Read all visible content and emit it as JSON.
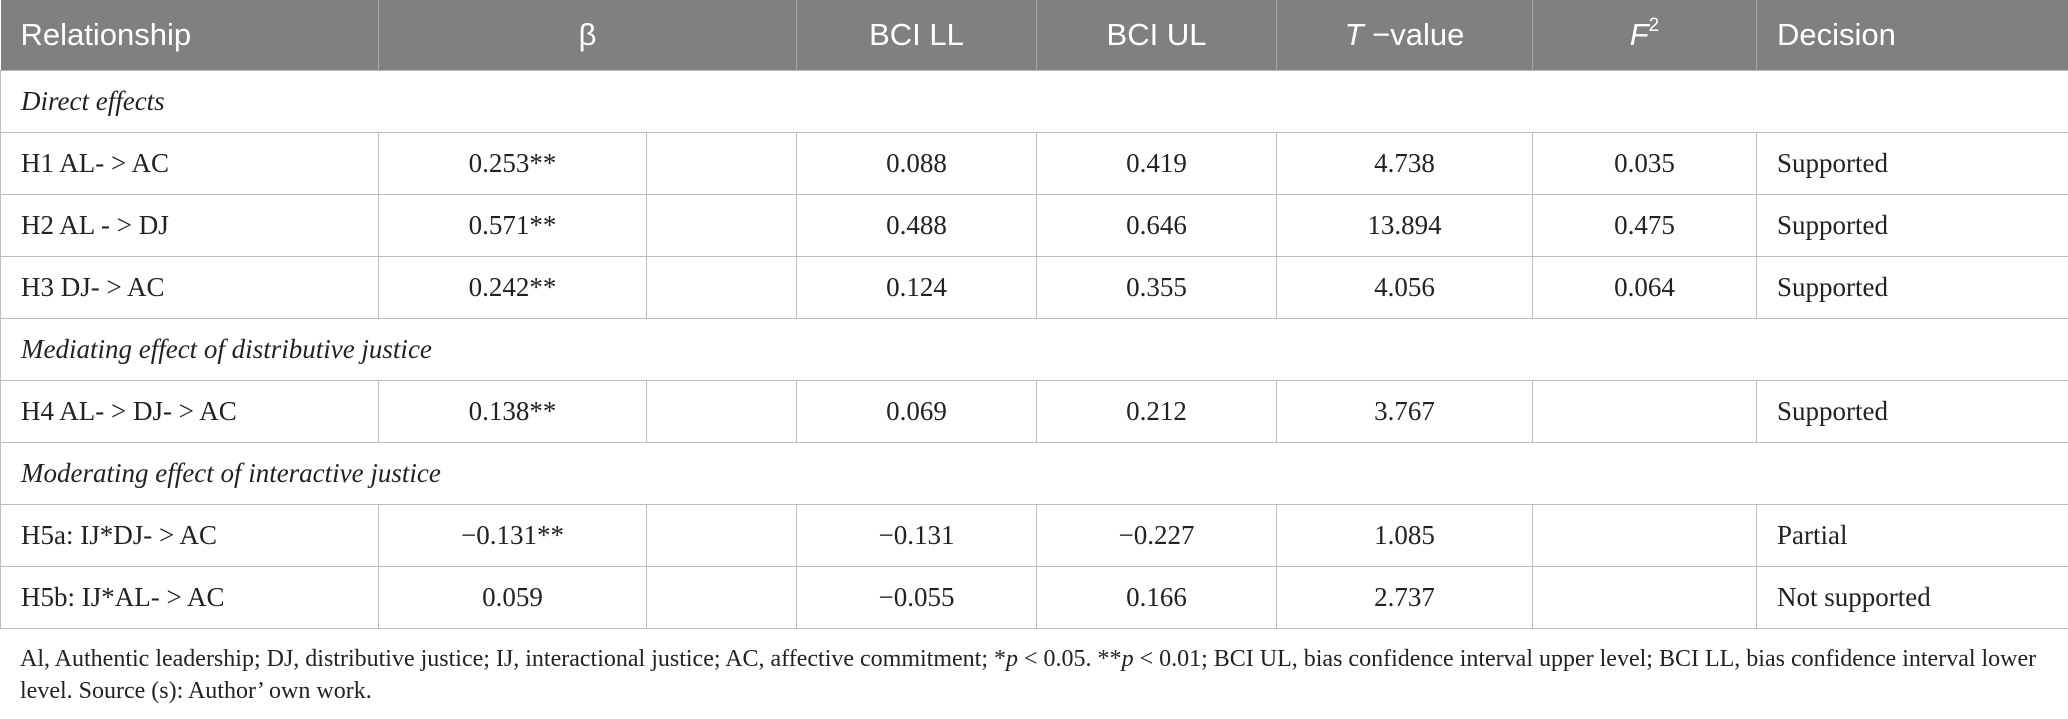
{
  "header": {
    "relationship": "Relationship",
    "beta": "β",
    "bci_ll": "BCI LL",
    "bci_ul": "BCI UL",
    "t_value_prefix": "T",
    "t_value_suffix": " −value",
    "f2_base": "F",
    "f2_sup": "2",
    "decision": "Decision"
  },
  "sections": {
    "direct": "Direct effects",
    "mediating": "Mediating effect of distributive justice",
    "moderating": "Moderating effect of interactive justice"
  },
  "rows": [
    {
      "relationship": "H1 AL- > AC",
      "beta": "0.253**",
      "extra": "",
      "bci_ll": "0.088",
      "bci_ul": "0.419",
      "t_value": "4.738",
      "f2": "0.035",
      "decision": "Supported"
    },
    {
      "relationship": "H2 AL - > DJ",
      "beta": "0.571**",
      "extra": "",
      "bci_ll": "0.488",
      "bci_ul": "0.646",
      "t_value": "13.894",
      "f2": "0.475",
      "decision": "Supported"
    },
    {
      "relationship": "H3 DJ- > AC",
      "beta": "0.242**",
      "extra": "",
      "bci_ll": "0.124",
      "bci_ul": "0.355",
      "t_value": "4.056",
      "f2": "0.064",
      "decision": "Supported"
    },
    {
      "relationship": "H4 AL- > DJ- > AC",
      "beta": "0.138**",
      "extra": "",
      "bci_ll": "0.069",
      "bci_ul": "0.212",
      "t_value": "3.767",
      "f2": "",
      "decision": "Supported"
    },
    {
      "relationship": "H5a: IJ*DJ- > AC",
      "beta": "−0.131**",
      "extra": "",
      "bci_ll": "−0.131",
      "bci_ul": "−0.227",
      "t_value": "1.085",
      "f2": "",
      "decision": "Partial"
    },
    {
      "relationship": "H5b: IJ*AL- > AC",
      "beta": "0.059",
      "extra": "",
      "bci_ll": "−0.055",
      "bci_ul": "0.166",
      "t_value": "2.737",
      "f2": "",
      "decision": "Not supported"
    }
  ],
  "footnote": {
    "part1": "Al, Authentic leadership; DJ, distributive justice; IJ, interactional justice; AC, affective commitment; *",
    "p1": "p",
    "part2": " < 0.05. **",
    "p2": "p",
    "part3": " < 0.01; BCI UL, bias confidence interval upper level; BCI LL, bias confidence interval lower level. Source (s): Author’ own work."
  }
}
